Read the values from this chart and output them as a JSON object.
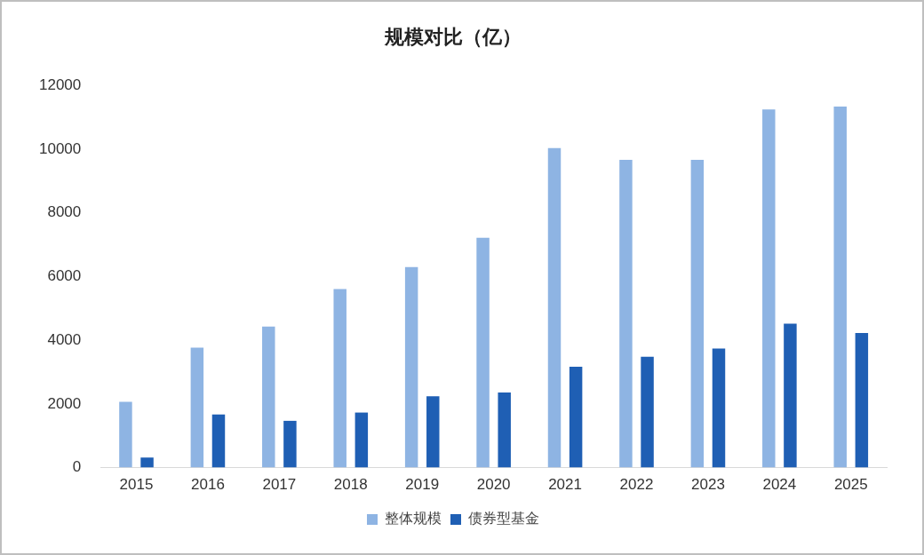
{
  "chart_data": {
    "type": "bar",
    "title": "规模对比（亿）",
    "categories": [
      "2015",
      "2016",
      "2017",
      "2018",
      "2019",
      "2020",
      "2021",
      "2022",
      "2023",
      "2024",
      "2025"
    ],
    "series": [
      {
        "name": "整体规模",
        "color": "#8eb4e3",
        "values": [
          2070,
          3770,
          4430,
          5610,
          6300,
          7220,
          10040,
          9670,
          9670,
          11250,
          11340
        ]
      },
      {
        "name": "债券型基金",
        "color": "#1f5fb4",
        "values": [
          320,
          1670,
          1470,
          1730,
          2240,
          2360,
          3170,
          3480,
          3740,
          4520,
          4230
        ]
      }
    ],
    "ylim": [
      0,
      12000
    ],
    "yticks": [
      0,
      2000,
      4000,
      6000,
      8000,
      10000,
      12000
    ],
    "grid": false,
    "legend": "bottom"
  }
}
